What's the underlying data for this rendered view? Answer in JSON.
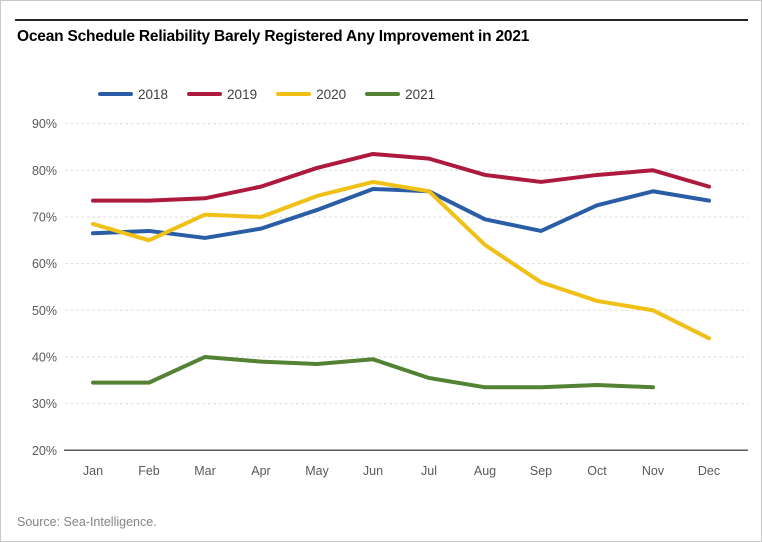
{
  "title": "Ocean Schedule Reliability Barely Registered Any Improvement in 2021",
  "source": "Source: Sea-Intelligence.",
  "colors": {
    "axis_line": "#595959",
    "gridline": "#d9d9d9",
    "tick_label": "#595959",
    "title_text": "#000000",
    "source_text": "#848484",
    "top_rule": "#262626"
  },
  "chart_data": {
    "type": "line",
    "title": "Ocean Schedule Reliability Barely Registered Any Improvement in 2021",
    "categories": [
      "Jan",
      "Feb",
      "Mar",
      "Apr",
      "May",
      "Jun",
      "Jul",
      "Aug",
      "Sep",
      "Oct",
      "Nov",
      "Dec"
    ],
    "series": [
      {
        "name": "2018",
        "color": "#2a5da6",
        "values": [
          66.5,
          67,
          65.5,
          67.5,
          71.5,
          76,
          75.5,
          69.5,
          67,
          72.5,
          75.5,
          73.5
        ]
      },
      {
        "name": "2019",
        "color": "#ad1a3d",
        "values": [
          73.5,
          73.5,
          74,
          76.5,
          80.5,
          83.5,
          82.5,
          79,
          77.5,
          79,
          80,
          76.5
        ]
      },
      {
        "name": "2020",
        "color": "#f0c017",
        "values": [
          68.5,
          65,
          70.5,
          70,
          74.5,
          77.5,
          75.5,
          64,
          56,
          52,
          50,
          44
        ]
      },
      {
        "name": "2021",
        "color": "#548235",
        "values": [
          34.5,
          34.5,
          40,
          39,
          38.5,
          39.5,
          35.5,
          33.5,
          33.5,
          34,
          33.5,
          null
        ]
      }
    ],
    "xlabel": "",
    "ylabel": "",
    "ylim": [
      20,
      90
    ],
    "y_tick_labels": [
      "20%",
      "30%",
      "40%",
      "50%",
      "60%",
      "70%",
      "80%",
      "90%"
    ],
    "grid": "horizontal-dashed",
    "legend_position": "top-left",
    "legend_entries": [
      "2018",
      "2019",
      "2020",
      "2021"
    ]
  }
}
